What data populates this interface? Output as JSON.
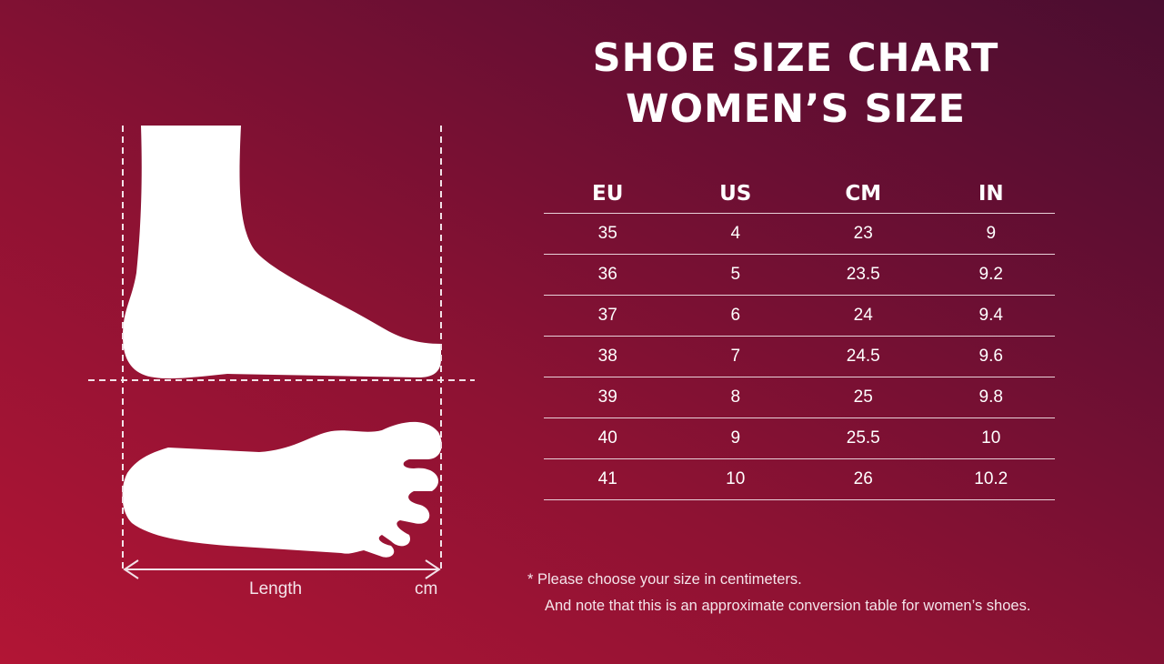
{
  "title": {
    "line1": "SHOE SIZE CHART",
    "line2": "WOMEN’S SIZE"
  },
  "table": {
    "headers": [
      "EU",
      "US",
      "CM",
      "IN"
    ],
    "rows": [
      [
        "35",
        "4",
        "23",
        "9"
      ],
      [
        "36",
        "5",
        "23.5",
        "9.2"
      ],
      [
        "37",
        "6",
        "24",
        "9.4"
      ],
      [
        "38",
        "7",
        "24.5",
        "9.6"
      ],
      [
        "39",
        "8",
        "25",
        "9.8"
      ],
      [
        "40",
        "9",
        "25.5",
        "10"
      ],
      [
        "41",
        "10",
        "26",
        "10.2"
      ]
    ]
  },
  "diagram": {
    "length_label": "Length",
    "unit_label": "cm",
    "icons": [
      "foot-side-icon",
      "foot-sole-icon"
    ]
  },
  "notes": {
    "line1": "*  Please choose your size in centimeters.",
    "line2": "And note that this is an approximate conversion table for women’s shoes."
  },
  "colors": {
    "background_start": "#b21535",
    "background_end": "#4a0d30",
    "foreground": "#ffffff"
  }
}
